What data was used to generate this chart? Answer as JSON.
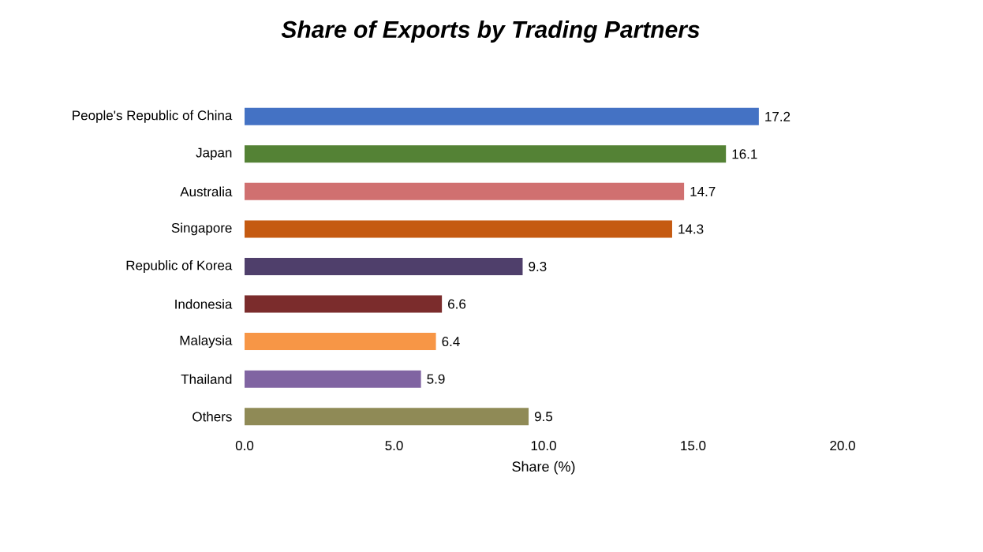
{
  "chart_data": {
    "type": "bar",
    "orientation": "horizontal",
    "title": "Share of Exports by Trading Partners",
    "xlabel": "Share (%)",
    "categories": [
      "People's Republic of China",
      "Japan",
      "Australia",
      "Singapore",
      "Republic of Korea",
      "Indonesia",
      "Malaysia",
      "Thailand",
      "Others"
    ],
    "values": [
      17.2,
      16.1,
      14.7,
      14.3,
      9.3,
      6.6,
      6.4,
      5.9,
      9.5
    ],
    "colors": [
      "#4472c4",
      "#548235",
      "#d07070",
      "#c55a11",
      "#4f3f6b",
      "#7b2c2c",
      "#f79646",
      "#8064a2",
      "#8f8a56"
    ],
    "xlim": [
      0,
      20
    ],
    "xticks": [
      {
        "value": 0,
        "label": "0.0"
      },
      {
        "value": 5,
        "label": "5.0"
      },
      {
        "value": 10,
        "label": "10.0"
      },
      {
        "value": 15,
        "label": "15.0"
      },
      {
        "value": 20,
        "label": "20.0"
      }
    ],
    "data_labels": true
  }
}
